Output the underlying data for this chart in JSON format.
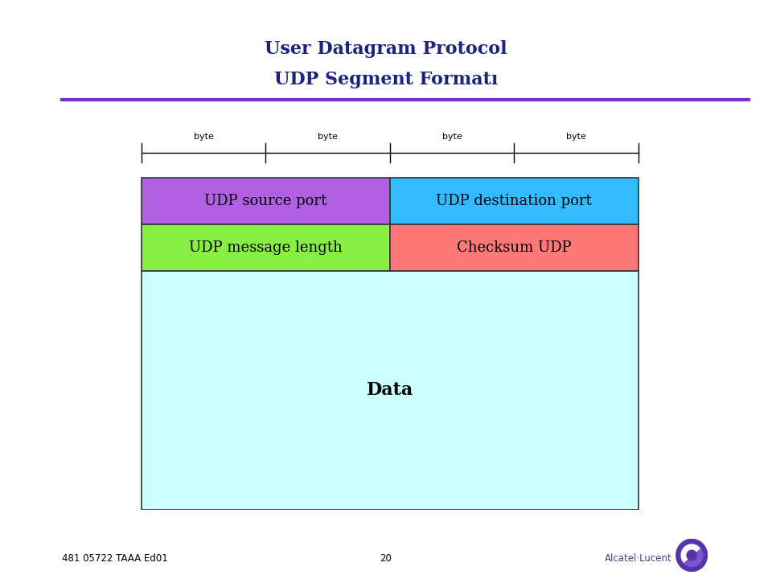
{
  "title_line1": "User Datagram Protocol",
  "title_line2": "UDP Segment Formatı",
  "title_color": "#1a237e",
  "separator_color": "#7b2fbe",
  "bg_color": "#ffffff",
  "cells": [
    {
      "label": "UDP source port",
      "col": 0,
      "row": 0,
      "fc": "#b060e0",
      "ec": "#333333"
    },
    {
      "label": "UDP destination port",
      "col": 1,
      "row": 0,
      "fc": "#33bbff",
      "ec": "#333333"
    },
    {
      "label": "UDP message length",
      "col": 0,
      "row": 1,
      "fc": "#88ee44",
      "ec": "#333333"
    },
    {
      "label": "Checksum UDP",
      "col": 1,
      "row": 1,
      "fc": "#ff7777",
      "ec": "#333333"
    }
  ],
  "data_box_fc": "#ccffff",
  "data_box_ec": "#333333",
  "data_label": "Data",
  "cell_font_size": 13,
  "data_font_size": 16,
  "byte_font_size": 8,
  "footer_left": "481 05722 TAAA Ed01",
  "footer_center": "20",
  "footer_right": "Alcatel·Lucent"
}
